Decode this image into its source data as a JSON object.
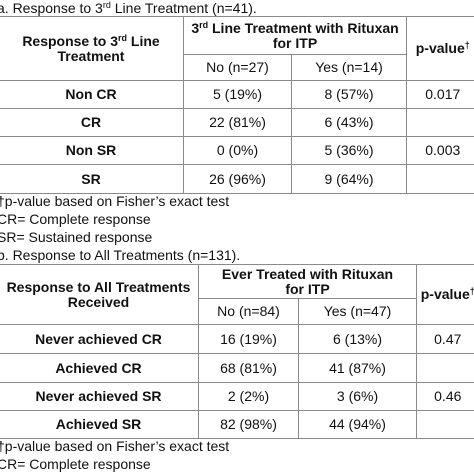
{
  "tableA": {
    "caption_prefix": "a. Response to 3",
    "caption_sup": "rd",
    "caption_suffix": " Line Treatment (n=41).",
    "col1_header_line1_prefix": "Response to 3",
    "col1_header_sup": "rd",
    "col1_header_line1_suffix": " Line",
    "col1_header_line2": "Treatment",
    "col2_header_prefix": "3",
    "col2_header_sup": "rd",
    "col2_header_line1_suffix": " Line Treatment with Rituxan",
    "col2_header_line2": "for ITP",
    "col3_header": "p-value",
    "col3_header_sup": "†",
    "sub_no": "No (n=27)",
    "sub_yes": "Yes (n=14)",
    "rows": [
      {
        "label": "Non CR",
        "no": "5 (19%)",
        "yes": "8 (57%)",
        "p": "0.017"
      },
      {
        "label": "CR",
        "no": "22 (81%)",
        "yes": "6 (43%)",
        "p": ""
      },
      {
        "label": "Non SR",
        "no": "0 (0%)",
        "yes": "5 (36%)",
        "p": "0.003"
      },
      {
        "label": "SR",
        "no": "26 (96%)",
        "yes": "9 (64%)",
        "p": ""
      }
    ],
    "notes": [
      "†p-value based on Fisher’s exact test",
      "CR= Complete response",
      "SR= Sustained response"
    ]
  },
  "tableB": {
    "caption": "b. Response to All Treatments (n=131).",
    "col1_header_line1": "Response to All Treatments",
    "col1_header_line2": "Received",
    "col2_header_line1": "Ever Treated with Rituxan",
    "col2_header_line2": "for ITP",
    "col3_header": "p-value",
    "col3_header_sup": "†",
    "sub_no": "No (n=84)",
    "sub_yes": "Yes (n=47)",
    "rows": [
      {
        "label": "Never achieved CR",
        "no": "16 (19%)",
        "yes": "6 (13%)",
        "p": "0.47"
      },
      {
        "label": "Achieved CR",
        "no": "68 (81%)",
        "yes": "41 (87%)",
        "p": ""
      },
      {
        "label": "Never achieved SR",
        "no": "2 (2%)",
        "yes": "3 (6%)",
        "p": "0.46"
      },
      {
        "label": "Achieved SR",
        "no": "82 (98%)",
        "yes": "44 (94%)",
        "p": ""
      }
    ],
    "notes": [
      "†p-value based on Fisher’s exact test",
      "CR= Complete response"
    ]
  }
}
